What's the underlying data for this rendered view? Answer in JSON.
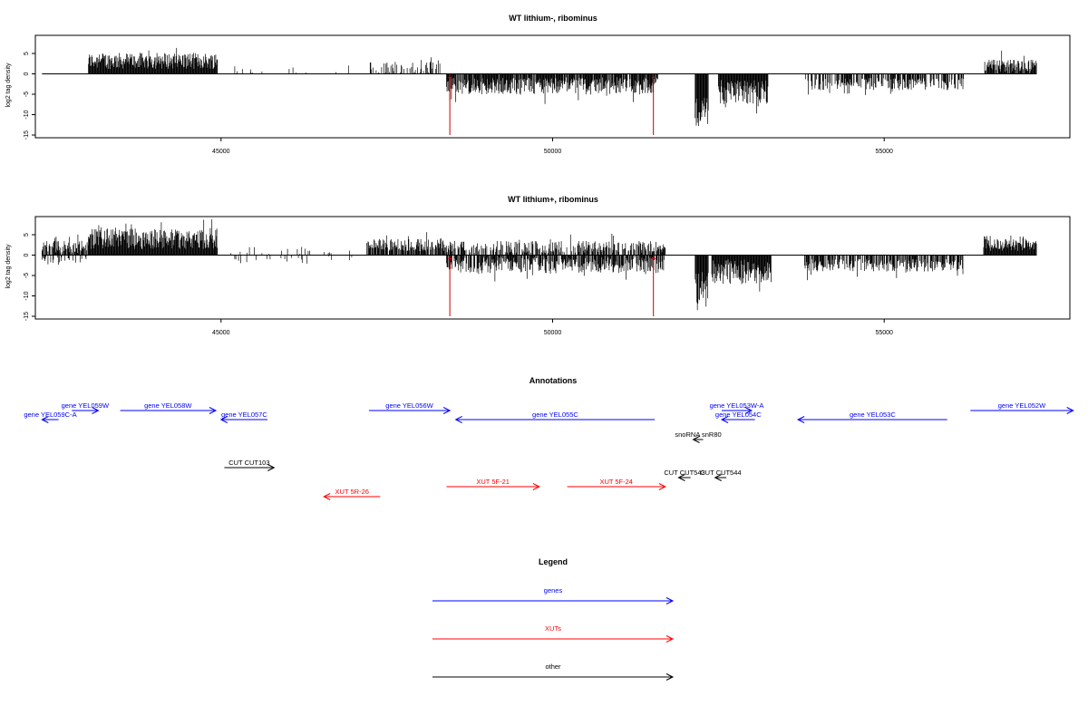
{
  "chart_data": [
    {
      "type": "bar",
      "title": "WT lithium-, ribominus",
      "ylabel": "log2 tag density",
      "xlim": [
        42200,
        57800
      ],
      "ylim": [
        -15,
        9
      ],
      "x_ticks": [
        45000,
        50000,
        55000
      ],
      "x_tick_labels": [
        "45000",
        "50000",
        "55000"
      ],
      "y_ticks": [
        -15,
        -10,
        -5,
        0,
        5
      ],
      "y_tick_labels": [
        "-15",
        "-10",
        "-5",
        "0",
        "5"
      ],
      "data_range": [
        42300,
        57300
      ],
      "series": [
        {
          "color": "#000000",
          "segments": [
            {
              "start": 43000,
              "end": 44950,
              "sign": 1,
              "mean": 3.2,
              "amp": 2.0,
              "density": 1.0
            },
            {
              "start": 45100,
              "end": 47000,
              "sign": 1,
              "mean": 1.0,
              "amp": 1.0,
              "density": 0.04
            },
            {
              "start": 47200,
              "end": 48300,
              "sign": 1,
              "mean": 1.5,
              "amp": 1.5,
              "density": 0.35
            },
            {
              "start": 48400,
              "end": 50150,
              "sign": -1,
              "mean": 3.0,
              "amp": 2.0,
              "density": 0.9
            },
            {
              "start": 50150,
              "end": 51600,
              "sign": -1,
              "mean": 2.8,
              "amp": 2.0,
              "density": 0.9
            },
            {
              "start": 52150,
              "end": 52350,
              "sign": -1,
              "mean": 9.0,
              "amp": 4.0,
              "density": 1.0
            },
            {
              "start": 52500,
              "end": 53250,
              "sign": -1,
              "mean": 4.5,
              "amp": 3.0,
              "density": 1.0
            },
            {
              "start": 53800,
              "end": 56200,
              "sign": -1,
              "mean": 2.5,
              "amp": 1.5,
              "density": 0.6
            },
            {
              "start": 56500,
              "end": 57300,
              "sign": 1,
              "mean": 2.0,
              "amp": 1.5,
              "density": 0.9
            }
          ]
        },
        {
          "color": "#cc0000",
          "spikes": [
            {
              "x": 48450,
              "y": -15
            },
            {
              "x": 51520,
              "y": -15
            }
          ]
        }
      ]
    },
    {
      "type": "bar",
      "title": "WT lithium+, ribominus",
      "ylabel": "log2 tag density",
      "xlim": [
        42200,
        57800
      ],
      "ylim": [
        -15,
        9
      ],
      "x_ticks": [
        45000,
        50000,
        55000
      ],
      "x_tick_labels": [
        "45000",
        "50000",
        "55000"
      ],
      "y_ticks": [
        -15,
        -10,
        -5,
        0,
        5
      ],
      "y_tick_labels": [
        "-15",
        "-10",
        "-5",
        "0",
        "5"
      ],
      "data_range": [
        42300,
        57300
      ],
      "series": [
        {
          "color": "#000000",
          "segments": [
            {
              "start": 42300,
              "end": 43000,
              "sign": 1,
              "mean": 2.0,
              "amp": 1.5,
              "density": 0.7
            },
            {
              "start": 42300,
              "end": 43000,
              "sign": -1,
              "mean": 1.5,
              "amp": 1.0,
              "density": 0.3
            },
            {
              "start": 43000,
              "end": 44950,
              "sign": 1,
              "mean": 4.0,
              "amp": 2.5,
              "density": 1.0
            },
            {
              "start": 45100,
              "end": 47000,
              "sign": 1,
              "mean": 1.0,
              "amp": 1.0,
              "density": 0.08
            },
            {
              "start": 45100,
              "end": 47000,
              "sign": -1,
              "mean": 1.0,
              "amp": 1.0,
              "density": 0.05
            },
            {
              "start": 47200,
              "end": 48400,
              "sign": 1,
              "mean": 2.5,
              "amp": 1.5,
              "density": 0.8
            },
            {
              "start": 48400,
              "end": 51700,
              "sign": 1,
              "mean": 2.0,
              "amp": 1.5,
              "density": 0.6
            },
            {
              "start": 48400,
              "end": 51700,
              "sign": -1,
              "mean": 2.5,
              "amp": 2.0,
              "density": 0.8
            },
            {
              "start": 52150,
              "end": 52350,
              "sign": -1,
              "mean": 8.0,
              "amp": 4.0,
              "density": 1.0
            },
            {
              "start": 52400,
              "end": 53300,
              "sign": -1,
              "mean": 4.0,
              "amp": 3.0,
              "density": 1.0
            },
            {
              "start": 53800,
              "end": 56200,
              "sign": -1,
              "mean": 2.5,
              "amp": 1.5,
              "density": 0.7
            },
            {
              "start": 56500,
              "end": 57300,
              "sign": 1,
              "mean": 2.5,
              "amp": 1.5,
              "density": 1.0
            }
          ]
        },
        {
          "color": "#cc0000",
          "spikes": [
            {
              "x": 48450,
              "y": -15
            },
            {
              "x": 51520,
              "y": -15
            }
          ]
        }
      ]
    }
  ],
  "annotations": {
    "title": "Annotations",
    "xlim": [
      42200,
      57800
    ],
    "colors": {
      "genes": "#0000ff",
      "XUTs": "#ff0000",
      "other": "#000000"
    },
    "features": [
      {
        "label": "gene YEL059W",
        "start": 42750,
        "end": 43150,
        "strand": "+",
        "kind": "genes",
        "row": 0
      },
      {
        "label": "gene YEL059C-A",
        "start": 42300,
        "end": 42550,
        "strand": "-",
        "kind": "genes",
        "row": 1
      },
      {
        "label": "gene YEL058W",
        "start": 43480,
        "end": 44920,
        "strand": "+",
        "kind": "genes",
        "row": 0
      },
      {
        "label": "gene YEL057C",
        "start": 45000,
        "end": 45700,
        "strand": "-",
        "kind": "genes",
        "row": 1
      },
      {
        "label": "gene YEL056W",
        "start": 47230,
        "end": 48450,
        "strand": "+",
        "kind": "genes",
        "row": 0
      },
      {
        "label": "gene YEL055C",
        "start": 48540,
        "end": 51540,
        "strand": "-",
        "kind": "genes",
        "row": 1
      },
      {
        "label": "gene YEL053W-A",
        "start": 52550,
        "end": 53000,
        "strand": "+",
        "kind": "genes",
        "row": 0
      },
      {
        "label": "gene YEL054C",
        "start": 52550,
        "end": 53050,
        "strand": "-",
        "kind": "genes",
        "row": 1
      },
      {
        "label": "gene YEL053C",
        "start": 53700,
        "end": 55950,
        "strand": "-",
        "kind": "genes",
        "row": 1
      },
      {
        "label": "gene YEL052W",
        "start": 56300,
        "end": 57850,
        "strand": "+",
        "kind": "genes",
        "row": 0
      },
      {
        "label": "snoRNA snR80",
        "start": 52120,
        "end": 52270,
        "strand": "-",
        "kind": "other",
        "row": 3
      },
      {
        "label": "CUT CUT103",
        "start": 45050,
        "end": 45800,
        "strand": "+",
        "kind": "other",
        "row": 5
      },
      {
        "label": "CUT CUT543",
        "start": 51900,
        "end": 52080,
        "strand": "-",
        "kind": "other",
        "row": 6
      },
      {
        "label": "CUT CUT544",
        "start": 52450,
        "end": 52620,
        "strand": "-",
        "kind": "other",
        "row": 6
      },
      {
        "label": "XUT 5F-21",
        "start": 48400,
        "end": 49800,
        "strand": "+",
        "kind": "XUTs",
        "row": 7
      },
      {
        "label": "XUT 5F-24",
        "start": 50220,
        "end": 51700,
        "strand": "+",
        "kind": "XUTs",
        "row": 7
      },
      {
        "label": "XUT 5R-26",
        "start": 46550,
        "end": 47400,
        "strand": "-",
        "kind": "XUTs",
        "row": 8
      }
    ]
  },
  "legend": {
    "title": "Legend",
    "items": [
      {
        "label": "genes",
        "color": "#0000ff"
      },
      {
        "label": "XUTs",
        "color": "#ff0000"
      },
      {
        "label": "other",
        "color": "#000000"
      }
    ]
  }
}
